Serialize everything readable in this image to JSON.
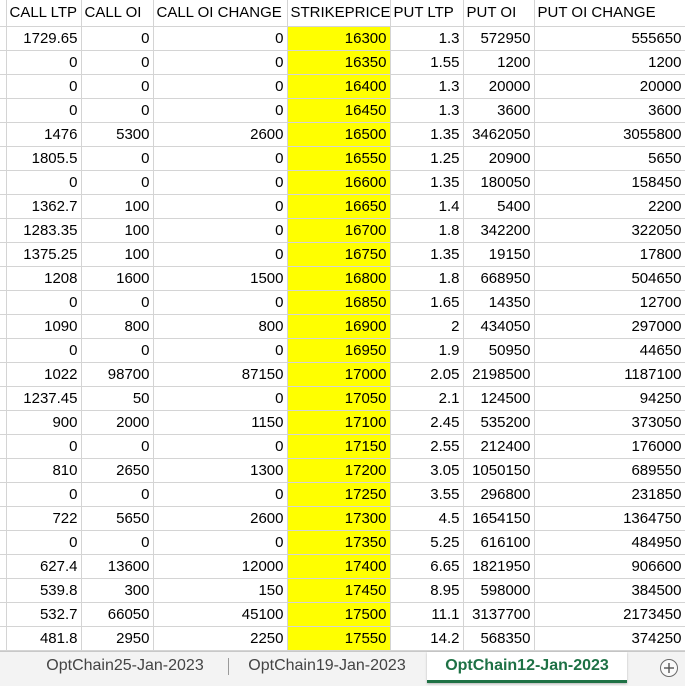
{
  "sheet": {
    "headers": [
      "CALL LTP",
      "CALL OI",
      "CALL OI CHANGE",
      "STRIKEPRICE",
      "PUT LTP",
      "PUT OI",
      "PUT OI CHANGE"
    ],
    "rows": [
      [
        "1729.65",
        "0",
        "0",
        "16300",
        "1.3",
        "572950",
        "555650"
      ],
      [
        "0",
        "0",
        "0",
        "16350",
        "1.55",
        "1200",
        "1200"
      ],
      [
        "0",
        "0",
        "0",
        "16400",
        "1.3",
        "20000",
        "20000"
      ],
      [
        "0",
        "0",
        "0",
        "16450",
        "1.3",
        "3600",
        "3600"
      ],
      [
        "1476",
        "5300",
        "2600",
        "16500",
        "1.35",
        "3462050",
        "3055800"
      ],
      [
        "1805.5",
        "0",
        "0",
        "16550",
        "1.25",
        "20900",
        "5650"
      ],
      [
        "0",
        "0",
        "0",
        "16600",
        "1.35",
        "180050",
        "158450"
      ],
      [
        "1362.7",
        "100",
        "0",
        "16650",
        "1.4",
        "5400",
        "2200"
      ],
      [
        "1283.35",
        "100",
        "0",
        "16700",
        "1.8",
        "342200",
        "322050"
      ],
      [
        "1375.25",
        "100",
        "0",
        "16750",
        "1.35",
        "19150",
        "17800"
      ],
      [
        "1208",
        "1600",
        "1500",
        "16800",
        "1.8",
        "668950",
        "504650"
      ],
      [
        "0",
        "0",
        "0",
        "16850",
        "1.65",
        "14350",
        "12700"
      ],
      [
        "1090",
        "800",
        "800",
        "16900",
        "2",
        "434050",
        "297000"
      ],
      [
        "0",
        "0",
        "0",
        "16950",
        "1.9",
        "50950",
        "44650"
      ],
      [
        "1022",
        "98700",
        "87150",
        "17000",
        "2.05",
        "2198500",
        "1187100"
      ],
      [
        "1237.45",
        "50",
        "0",
        "17050",
        "2.1",
        "124500",
        "94250"
      ],
      [
        "900",
        "2000",
        "1150",
        "17100",
        "2.45",
        "535200",
        "373050"
      ],
      [
        "0",
        "0",
        "0",
        "17150",
        "2.55",
        "212400",
        "176000"
      ],
      [
        "810",
        "2650",
        "1300",
        "17200",
        "3.05",
        "1050150",
        "689550"
      ],
      [
        "0",
        "0",
        "0",
        "17250",
        "3.55",
        "296800",
        "231850"
      ],
      [
        "722",
        "5650",
        "2600",
        "17300",
        "4.5",
        "1654150",
        "1364750"
      ],
      [
        "0",
        "0",
        "0",
        "17350",
        "5.25",
        "616100",
        "484950"
      ],
      [
        "627.4",
        "13600",
        "12000",
        "17400",
        "6.65",
        "1821950",
        "906600"
      ],
      [
        "539.8",
        "300",
        "150",
        "17450",
        "8.95",
        "598000",
        "384500"
      ],
      [
        "532.7",
        "66050",
        "45100",
        "17500",
        "11.1",
        "3137700",
        "2173450"
      ],
      [
        "481.8",
        "2950",
        "2250",
        "17550",
        "14.2",
        "568350",
        "374250"
      ]
    ],
    "strike_highlight_color": "#ffff00"
  },
  "tabs": [
    {
      "label": "OptChain25-Jan-2023",
      "active": false
    },
    {
      "label": "OptChain19-Jan-2023",
      "active": false
    },
    {
      "label": "OptChain12-Jan-2023",
      "active": true
    }
  ],
  "add_sheet_icon": "plus-circle-icon"
}
